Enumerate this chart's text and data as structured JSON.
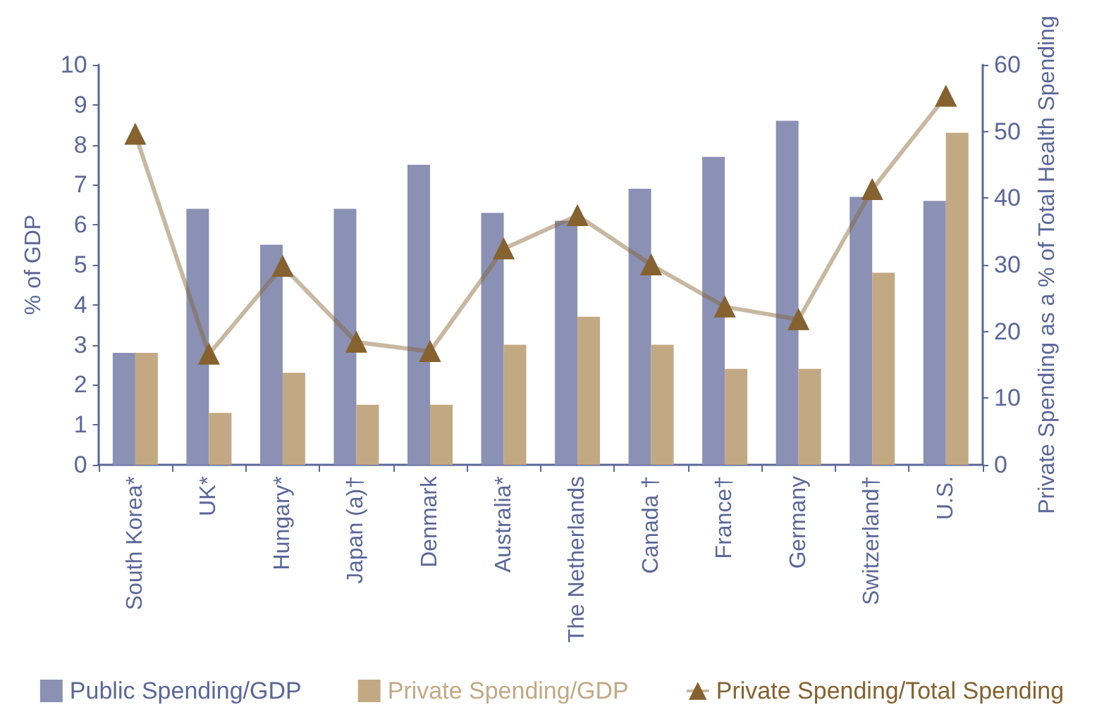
{
  "chart_data": {
    "type": "bar",
    "categories": [
      "South Korea*",
      "UK*",
      "Hungary*",
      "Japan (a)†",
      "Denmark",
      "Australia*",
      "The Netherlands",
      "Canada †",
      "France†",
      "Germany",
      "Switzerland†",
      "U.S."
    ],
    "series": [
      {
        "name": "Public Spending/GDP",
        "color": "#8a91b4",
        "values": [
          2.8,
          6.4,
          5.5,
          6.4,
          7.5,
          6.3,
          6.1,
          6.9,
          7.7,
          8.6,
          6.7,
          6.6
        ]
      },
      {
        "name": "Private Spending/GDP",
        "color": "#c2a984",
        "values": [
          2.8,
          1.3,
          2.3,
          1.5,
          1.5,
          3.0,
          3.7,
          3.0,
          2.4,
          2.4,
          4.8,
          8.3
        ]
      },
      {
        "name": "Private Spending/Total Spending",
        "type": "line",
        "axis": "y2",
        "color": "#85622f",
        "values": [
          49.6,
          16.6,
          29.8,
          18.4,
          17.0,
          32.4,
          37.4,
          30.0,
          23.7,
          21.8,
          41.3,
          55.3
        ]
      }
    ],
    "ylabel": "% of GDP",
    "y2label": "Private Spending as a % of Total Health Spending",
    "ylim": [
      0,
      10
    ],
    "yticks": [
      0,
      1,
      2,
      3,
      4,
      5,
      6,
      7,
      8,
      9,
      10
    ],
    "y2lim": [
      0,
      60
    ],
    "y2ticks": [
      0,
      10,
      20,
      30,
      40,
      50,
      60
    ],
    "grid": false,
    "legend": "bottom",
    "marker": "triangle",
    "line_style": "solid"
  }
}
